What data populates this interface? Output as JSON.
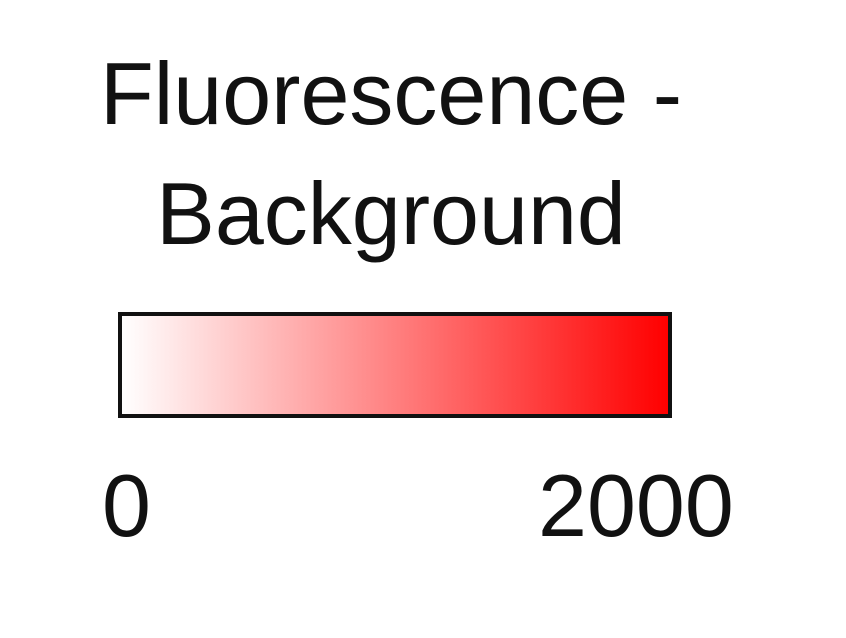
{
  "chart_data": {
    "type": "heatmap",
    "title_lines": [
      "Fluorescence -",
      "Background"
    ],
    "colorscale": {
      "low_color": "#ffffff",
      "high_color": "#ff0000"
    },
    "range": [
      0,
      2000
    ],
    "tick_labels": [
      "0",
      "2000"
    ]
  }
}
